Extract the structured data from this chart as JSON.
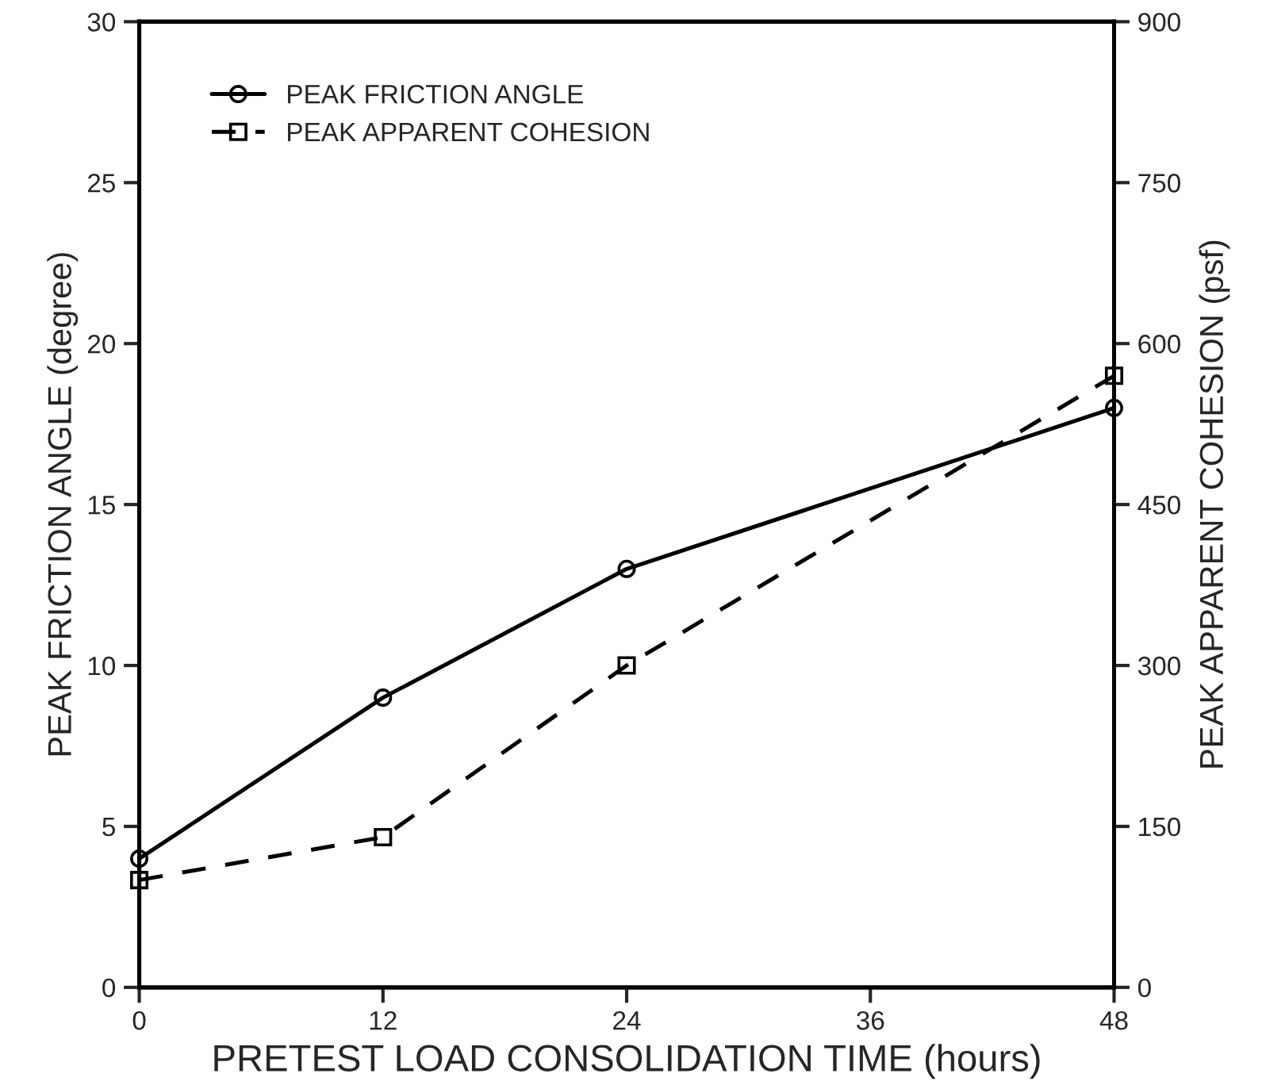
{
  "chart_data": {
    "type": "line",
    "xlabel": "PRETEST LOAD CONSOLIDATION TIME (hours)",
    "ylabel": "PEAK FRICTION ANGLE (degree)",
    "y2label": "PEAK APPARENT COHESION (psf)",
    "x": [
      0,
      12,
      24,
      48
    ],
    "series": [
      {
        "name": "PEAK FRICTION ANGLE",
        "color": "#000000",
        "values": [
          4,
          9,
          13,
          18
        ],
        "marker": "circle",
        "line_style": "solid"
      },
      {
        "name": "PEAK APPARENT COHESION",
        "color": "#000000",
        "values": [
          100,
          140,
          300,
          570
        ],
        "marker": "square",
        "line_style": "dashed",
        "axis": "y2"
      }
    ],
    "xlim": [
      0,
      48
    ],
    "xticks": [
      0,
      12,
      24,
      36,
      48
    ],
    "ylim": [
      0,
      30
    ],
    "yticks": [
      0,
      5,
      10,
      15,
      20,
      25,
      30
    ],
    "y2lim": [
      0,
      900
    ],
    "y2ticks": [
      0,
      150,
      300,
      450,
      600,
      750,
      900
    ],
    "grid": false,
    "legend": "top left"
  }
}
